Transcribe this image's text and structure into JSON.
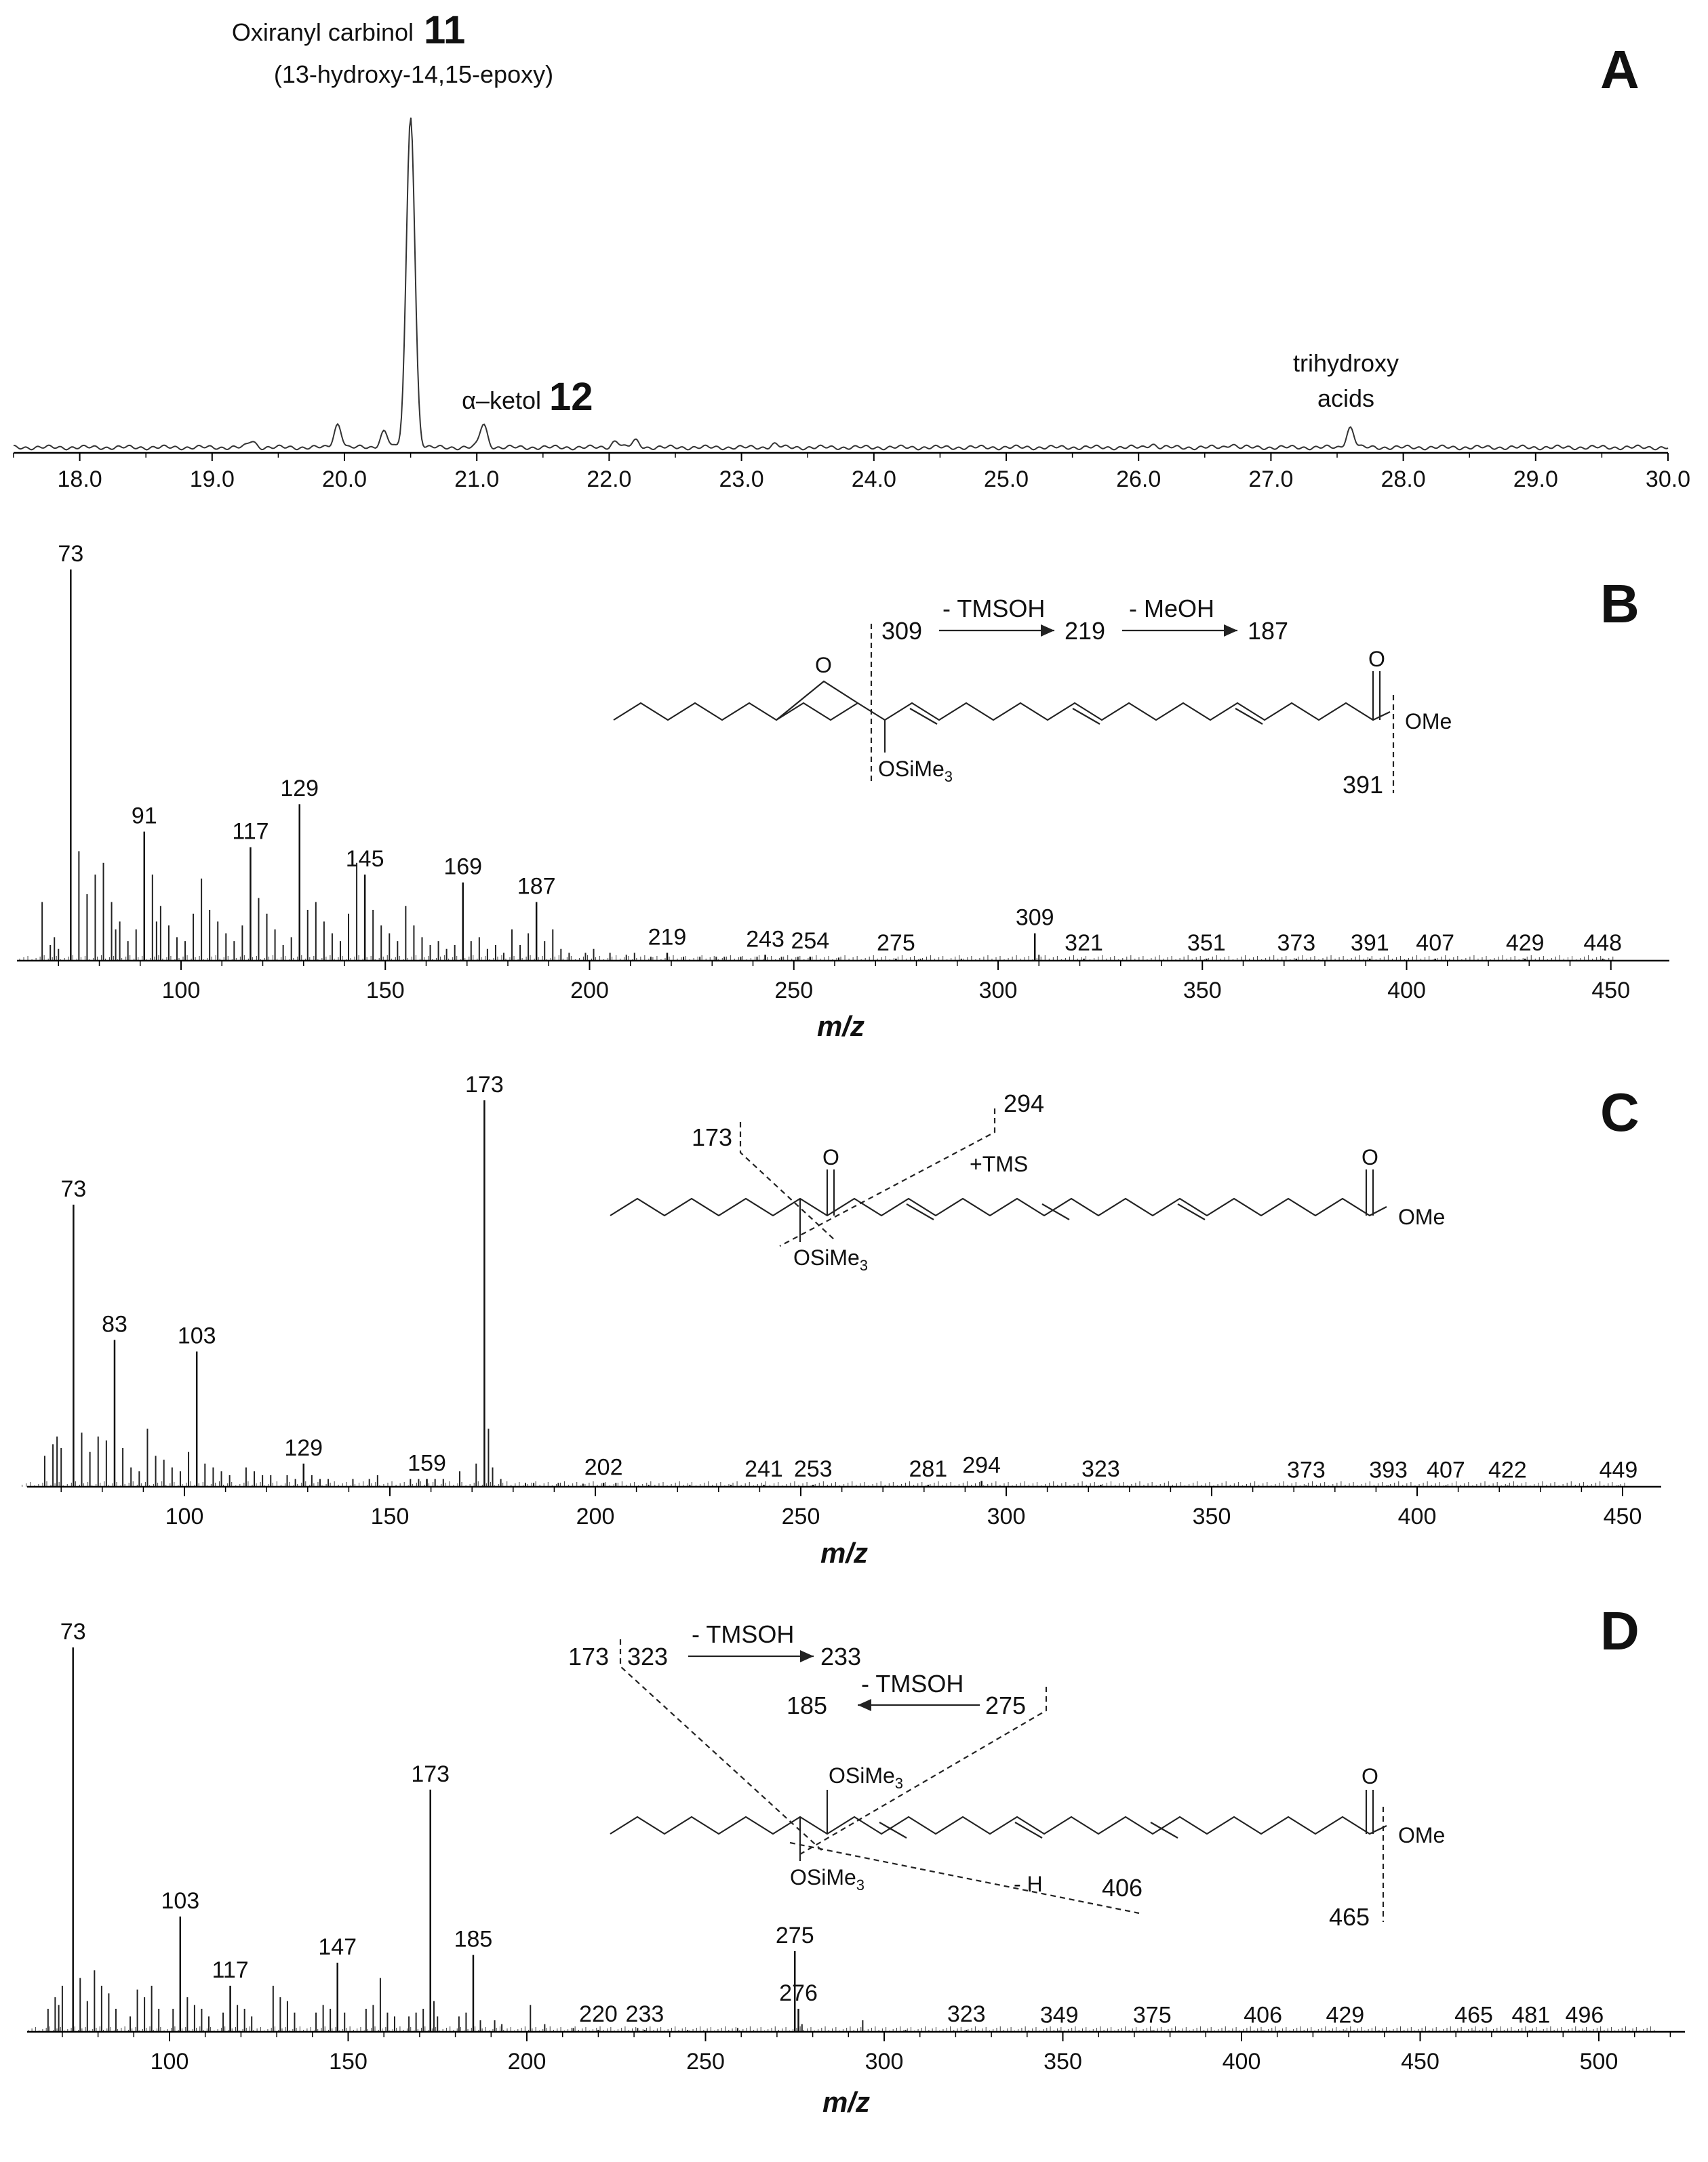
{
  "chart_data": [
    {
      "panel": "A",
      "type": "line",
      "title": "",
      "xlabel": "",
      "xlim": [
        17.5,
        30.0
      ],
      "xticks": [
        "18.0",
        "19.0",
        "20.0",
        "21.0",
        "22.0",
        "23.0",
        "24.0",
        "25.0",
        "26.0",
        "27.0",
        "28.0",
        "29.0",
        "30.0"
      ],
      "peaks": [
        {
          "x": 19.3,
          "h": 0.02
        },
        {
          "x": 19.95,
          "h": 0.07
        },
        {
          "x": 20.3,
          "h": 0.05
        },
        {
          "x": 20.5,
          "h": 1.0
        },
        {
          "x": 21.05,
          "h": 0.07
        },
        {
          "x": 22.05,
          "h": 0.02
        },
        {
          "x": 22.2,
          "h": 0.02
        },
        {
          "x": 23.25,
          "h": 0.01
        },
        {
          "x": 26.1,
          "h": 0.01
        },
        {
          "x": 26.7,
          "h": 0.01
        },
        {
          "x": 27.6,
          "h": 0.06
        }
      ],
      "annotations": {
        "main_label": "Oxiranyl carbinol",
        "main_number": "11",
        "main_sub": "(13-hydroxy-14,15-epoxy)",
        "ketol_label": "α–ketol",
        "ketol_number": "12",
        "trihydroxy_line1": "trihydroxy",
        "trihydroxy_line2": "acids"
      }
    },
    {
      "panel": "B",
      "type": "bar",
      "xlabel": "m/z",
      "xlim": [
        60,
        455
      ],
      "xticks": [
        100,
        150,
        200,
        250,
        300,
        350,
        400,
        450
      ],
      "labeled_peaks": [
        {
          "mz": 73,
          "i": 100,
          "label": "73"
        },
        {
          "mz": 91,
          "i": 33,
          "label": "91"
        },
        {
          "mz": 117,
          "i": 29,
          "label": "117"
        },
        {
          "mz": 129,
          "i": 40,
          "label": "129"
        },
        {
          "mz": 145,
          "i": 22,
          "label": "145"
        },
        {
          "mz": 169,
          "i": 20,
          "label": "169"
        },
        {
          "mz": 187,
          "i": 15,
          "label": "187"
        },
        {
          "mz": 219,
          "i": 2,
          "label": "219"
        },
        {
          "mz": 243,
          "i": 1.5,
          "label": "243"
        },
        {
          "mz": 254,
          "i": 1,
          "label": "254"
        },
        {
          "mz": 275,
          "i": 0.5,
          "label": "275"
        },
        {
          "mz": 309,
          "i": 7,
          "label": "309"
        },
        {
          "mz": 321,
          "i": 0.5,
          "label": "321"
        },
        {
          "mz": 351,
          "i": 0.5,
          "label": "351"
        },
        {
          "mz": 373,
          "i": 0.5,
          "label": "373"
        },
        {
          "mz": 391,
          "i": 0.5,
          "label": "391"
        },
        {
          "mz": 407,
          "i": 0.5,
          "label": "407"
        },
        {
          "mz": 429,
          "i": 0.5,
          "label": "429"
        },
        {
          "mz": 448,
          "i": 0.5,
          "label": "448"
        }
      ],
      "minor_peaks": [
        [
          66,
          15
        ],
        [
          68,
          4
        ],
        [
          69,
          6
        ],
        [
          70,
          3
        ],
        [
          75,
          28
        ],
        [
          77,
          17
        ],
        [
          79,
          22
        ],
        [
          81,
          25
        ],
        [
          83,
          15
        ],
        [
          84,
          8
        ],
        [
          85,
          10
        ],
        [
          87,
          5
        ],
        [
          89,
          8
        ],
        [
          93,
          22
        ],
        [
          94,
          10
        ],
        [
          95,
          14
        ],
        [
          97,
          9
        ],
        [
          99,
          6
        ],
        [
          101,
          5
        ],
        [
          103,
          12
        ],
        [
          105,
          21
        ],
        [
          107,
          13
        ],
        [
          109,
          10
        ],
        [
          111,
          7
        ],
        [
          113,
          5
        ],
        [
          115,
          9
        ],
        [
          119,
          16
        ],
        [
          121,
          12
        ],
        [
          123,
          8
        ],
        [
          125,
          4
        ],
        [
          127,
          6
        ],
        [
          131,
          13
        ],
        [
          133,
          15
        ],
        [
          135,
          10
        ],
        [
          137,
          7
        ],
        [
          139,
          5
        ],
        [
          141,
          12
        ],
        [
          143,
          25
        ],
        [
          147,
          13
        ],
        [
          149,
          9
        ],
        [
          151,
          7
        ],
        [
          153,
          5
        ],
        [
          155,
          14
        ],
        [
          157,
          9
        ],
        [
          159,
          6
        ],
        [
          161,
          4
        ],
        [
          163,
          5
        ],
        [
          165,
          3
        ],
        [
          167,
          4
        ],
        [
          171,
          5
        ],
        [
          173,
          6
        ],
        [
          175,
          3
        ],
        [
          177,
          4
        ],
        [
          179,
          2
        ],
        [
          181,
          8
        ],
        [
          183,
          4
        ],
        [
          185,
          7
        ],
        [
          189,
          5
        ],
        [
          191,
          8
        ],
        [
          193,
          3
        ],
        [
          195,
          2
        ],
        [
          199,
          2
        ],
        [
          201,
          3
        ],
        [
          205,
          2
        ],
        [
          209,
          1.5
        ],
        [
          211,
          2
        ],
        [
          215,
          1
        ],
        [
          223,
          1
        ],
        [
          227,
          1
        ],
        [
          231,
          1
        ],
        [
          233,
          1
        ],
        [
          237,
          1
        ],
        [
          241,
          1
        ],
        [
          247,
          1
        ],
        [
          251,
          1
        ],
        [
          261,
          0.8
        ],
        [
          281,
          0.5
        ],
        [
          291,
          0.5
        ],
        [
          310,
          1.5
        ]
      ],
      "structure_labels": {
        "frag309": "309",
        "loss1": "- TMSOH",
        "frag219": "219",
        "loss2": "- MeOH",
        "frag187": "187",
        "epoxy_o": "O",
        "carbonyl_o": "O",
        "ome": "OMe",
        "tms": "OSiMe",
        "tms_sub": "3",
        "frag391": "391"
      }
    },
    {
      "panel": "C",
      "type": "bar",
      "xlabel": "m/z",
      "xlim": [
        60,
        455
      ],
      "xticks": [
        100,
        150,
        200,
        250,
        300,
        350,
        400,
        450
      ],
      "labeled_peaks": [
        {
          "mz": 73,
          "i": 73,
          "label": "73"
        },
        {
          "mz": 83,
          "i": 38,
          "label": "83"
        },
        {
          "mz": 103,
          "i": 35,
          "label": "103"
        },
        {
          "mz": 129,
          "i": 6,
          "label": "129"
        },
        {
          "mz": 159,
          "i": 2,
          "label": "159"
        },
        {
          "mz": 173,
          "i": 100,
          "label": "173"
        },
        {
          "mz": 202,
          "i": 1,
          "label": "202"
        },
        {
          "mz": 241,
          "i": 0.5,
          "label": "241"
        },
        {
          "mz": 253,
          "i": 0.5,
          "label": "253"
        },
        {
          "mz": 281,
          "i": 0.5,
          "label": "281"
        },
        {
          "mz": 294,
          "i": 1.5,
          "label": "294"
        },
        {
          "mz": 323,
          "i": 0.5,
          "label": "323"
        },
        {
          "mz": 373,
          "i": 0.3,
          "label": "373"
        },
        {
          "mz": 393,
          "i": 0.3,
          "label": "393"
        },
        {
          "mz": 407,
          "i": 0.3,
          "label": "407"
        },
        {
          "mz": 422,
          "i": 0.3,
          "label": "422"
        },
        {
          "mz": 449,
          "i": 0.3,
          "label": "449"
        }
      ],
      "minor_peaks": [
        [
          66,
          8
        ],
        [
          68,
          11
        ],
        [
          69,
          13
        ],
        [
          70,
          10
        ],
        [
          75,
          14
        ],
        [
          77,
          9
        ],
        [
          79,
          13
        ],
        [
          81,
          12
        ],
        [
          85,
          10
        ],
        [
          87,
          5
        ],
        [
          89,
          4
        ],
        [
          91,
          15
        ],
        [
          93,
          8
        ],
        [
          95,
          7
        ],
        [
          97,
          5
        ],
        [
          99,
          4
        ],
        [
          101,
          9
        ],
        [
          105,
          6
        ],
        [
          107,
          5
        ],
        [
          109,
          4
        ],
        [
          111,
          3
        ],
        [
          115,
          5
        ],
        [
          117,
          4
        ],
        [
          119,
          3
        ],
        [
          121,
          3
        ],
        [
          125,
          3
        ],
        [
          127,
          2
        ],
        [
          131,
          3
        ],
        [
          133,
          2
        ],
        [
          135,
          2
        ],
        [
          141,
          2
        ],
        [
          145,
          2
        ],
        [
          147,
          3
        ],
        [
          155,
          2
        ],
        [
          157,
          2
        ],
        [
          161,
          2
        ],
        [
          163,
          2
        ],
        [
          167,
          4
        ],
        [
          171,
          6
        ],
        [
          174,
          15
        ],
        [
          175,
          5
        ],
        [
          177,
          2
        ],
        [
          183,
          1
        ],
        [
          185,
          1
        ],
        [
          191,
          1
        ],
        [
          197,
          0.8
        ],
        [
          205,
          1
        ],
        [
          213,
          0.5
        ],
        [
          223,
          0.5
        ],
        [
          233,
          0.5
        ]
      ],
      "structure_labels": {
        "frag173": "173",
        "frag294": "294",
        "plus_tms": "+TMS",
        "keto_o": "O",
        "carbonyl_o": "O",
        "ome": "OMe",
        "tms": "OSiMe",
        "tms_sub": "3"
      }
    },
    {
      "panel": "D",
      "type": "bar",
      "xlabel": "m/z",
      "xlim": [
        60,
        520
      ],
      "xticks": [
        100,
        150,
        200,
        250,
        300,
        350,
        400,
        450,
        500
      ],
      "labeled_peaks": [
        {
          "mz": 73,
          "i": 100,
          "label": "73"
        },
        {
          "mz": 103,
          "i": 30,
          "label": "103"
        },
        {
          "mz": 117,
          "i": 12,
          "label": "117"
        },
        {
          "mz": 147,
          "i": 18,
          "label": "147"
        },
        {
          "mz": 173,
          "i": 63,
          "label": "173"
        },
        {
          "mz": 185,
          "i": 20,
          "label": "185"
        },
        {
          "mz": 220,
          "i": 0.5,
          "label": "220"
        },
        {
          "mz": 233,
          "i": 0.5,
          "label": "233"
        },
        {
          "mz": 275,
          "i": 21,
          "label": "275"
        },
        {
          "mz": 276,
          "i": 6,
          "label": "276"
        },
        {
          "mz": 323,
          "i": 0.5,
          "label": "323"
        },
        {
          "mz": 349,
          "i": 0.3,
          "label": "349"
        },
        {
          "mz": 375,
          "i": 0.3,
          "label": "375"
        },
        {
          "mz": 406,
          "i": 0.3,
          "label": "406"
        },
        {
          "mz": 429,
          "i": 0.3,
          "label": "429"
        },
        {
          "mz": 465,
          "i": 0.3,
          "label": "465"
        },
        {
          "mz": 481,
          "i": 0.3,
          "label": "481"
        },
        {
          "mz": 496,
          "i": 0.3,
          "label": "496"
        }
      ],
      "minor_peaks": [
        [
          66,
          6
        ],
        [
          68,
          9
        ],
        [
          69,
          7
        ],
        [
          70,
          12
        ],
        [
          75,
          14
        ],
        [
          77,
          8
        ],
        [
          79,
          16
        ],
        [
          81,
          12
        ],
        [
          83,
          10
        ],
        [
          85,
          6
        ],
        [
          89,
          4
        ],
        [
          91,
          11
        ],
        [
          93,
          9
        ],
        [
          95,
          12
        ],
        [
          97,
          6
        ],
        [
          101,
          6
        ],
        [
          105,
          9
        ],
        [
          107,
          7
        ],
        [
          109,
          6
        ],
        [
          111,
          4
        ],
        [
          115,
          5
        ],
        [
          119,
          7
        ],
        [
          121,
          6
        ],
        [
          123,
          4
        ],
        [
          129,
          12
        ],
        [
          131,
          9
        ],
        [
          133,
          8
        ],
        [
          135,
          5
        ],
        [
          141,
          5
        ],
        [
          143,
          7
        ],
        [
          145,
          6
        ],
        [
          149,
          5
        ],
        [
          155,
          6
        ],
        [
          157,
          7
        ],
        [
          159,
          14
        ],
        [
          161,
          5
        ],
        [
          163,
          4
        ],
        [
          167,
          4
        ],
        [
          169,
          5
        ],
        [
          171,
          6
        ],
        [
          174,
          8
        ],
        [
          175,
          4
        ],
        [
          181,
          4
        ],
        [
          183,
          5
        ],
        [
          187,
          3
        ],
        [
          191,
          3
        ],
        [
          193,
          2
        ],
        [
          201,
          7
        ],
        [
          205,
          2
        ],
        [
          213,
          1
        ],
        [
          231,
          1
        ],
        [
          245,
          0.5
        ],
        [
          259,
          1
        ],
        [
          277,
          2
        ],
        [
          294,
          3
        ],
        [
          306,
          0.5
        ]
      ],
      "structure_labels": {
        "frag173": "173",
        "frag323": "323",
        "loss1": "- TMSOH",
        "frag233": "233",
        "frag185": "185",
        "loss2": "- TMSOH",
        "frag275": "275",
        "minus_h": "- H",
        "frag406": "406",
        "carbonyl_o": "O",
        "ome": "OMe",
        "tms": "OSiMe",
        "tms_sub": "3",
        "frag465": "465"
      }
    }
  ]
}
